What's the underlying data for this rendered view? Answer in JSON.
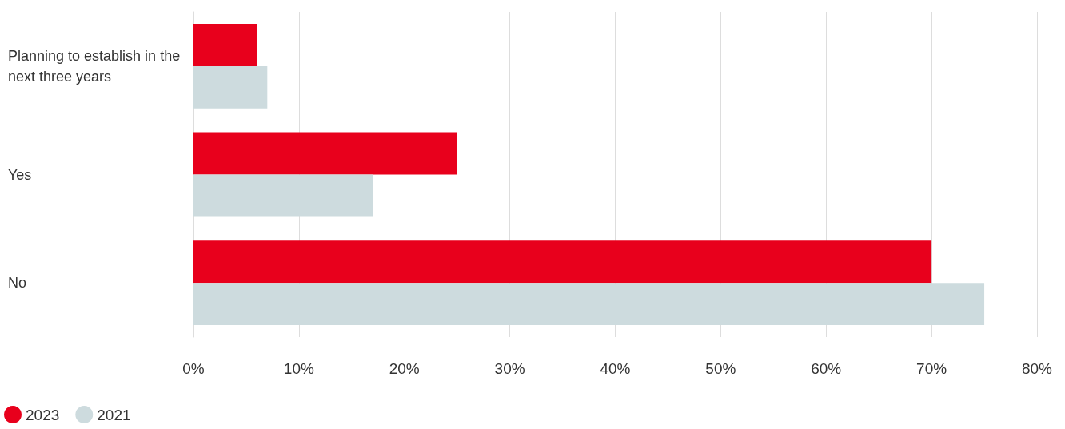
{
  "chart_data": {
    "type": "bar",
    "orientation": "horizontal",
    "categories": [
      "Planning to establish in the next three years",
      "Yes",
      "No"
    ],
    "series": [
      {
        "name": "2023",
        "color": "#e8001c",
        "values": [
          6,
          25,
          70
        ]
      },
      {
        "name": "2021",
        "color": "#cddbde",
        "values": [
          7,
          17,
          75
        ]
      }
    ],
    "xlim": [
      0,
      80
    ],
    "xticks": [
      {
        "value": 0,
        "label": "0%"
      },
      {
        "value": 10,
        "label": "10%"
      },
      {
        "value": 20,
        "label": "20%"
      },
      {
        "value": 30,
        "label": "30%"
      },
      {
        "value": 40,
        "label": "40%"
      },
      {
        "value": 50,
        "label": "50%"
      },
      {
        "value": 60,
        "label": "60%"
      },
      {
        "value": 70,
        "label": "70%"
      },
      {
        "value": 80,
        "label": "80%"
      }
    ],
    "grid": "x",
    "legend": "bottom left"
  }
}
